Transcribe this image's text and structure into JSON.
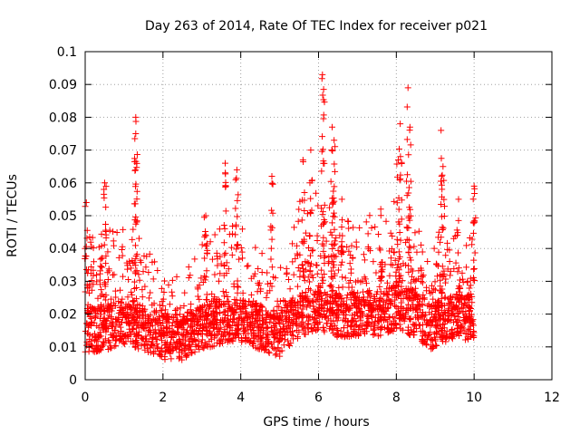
{
  "chart_data": {
    "type": "scatter",
    "title": "Day 263 of 2014, Rate Of TEC Index for receiver p021",
    "xlabel": "GPS time / hours",
    "ylabel": "ROTI / TECUs",
    "xlim": [
      0,
      12
    ],
    "ylim": [
      0,
      0.1
    ],
    "xticks": [
      "0",
      "2",
      "4",
      "6",
      "8",
      "10",
      "12"
    ],
    "yticks": [
      "0",
      "0.01",
      "0.02",
      "0.03",
      "0.04",
      "0.05",
      "0.06",
      "0.07",
      "0.08",
      "0.09",
      "0.1"
    ],
    "grid": true,
    "marker": "+",
    "color": "#ff0000",
    "series": [
      {
        "name": "ROTI p021",
        "x_range_hours": [
          0,
          10
        ],
        "baseline_envelope": [
          [
            0.0,
            0.015,
            0.035
          ],
          [
            0.5,
            0.016,
            0.036
          ],
          [
            1.0,
            0.017,
            0.038
          ],
          [
            1.5,
            0.016,
            0.034
          ],
          [
            2.0,
            0.013,
            0.022
          ],
          [
            2.5,
            0.013,
            0.022
          ],
          [
            3.0,
            0.016,
            0.032
          ],
          [
            3.5,
            0.018,
            0.04
          ],
          [
            4.0,
            0.018,
            0.04
          ],
          [
            4.5,
            0.016,
            0.03
          ],
          [
            5.0,
            0.014,
            0.024
          ],
          [
            5.5,
            0.02,
            0.045
          ],
          [
            6.0,
            0.022,
            0.05
          ],
          [
            6.5,
            0.02,
            0.045
          ],
          [
            7.0,
            0.02,
            0.042
          ],
          [
            7.5,
            0.02,
            0.04
          ],
          [
            8.0,
            0.022,
            0.045
          ],
          [
            8.5,
            0.02,
            0.04
          ],
          [
            8.9,
            0.016,
            0.03
          ],
          [
            9.2,
            0.018,
            0.04
          ],
          [
            9.6,
            0.02,
            0.042
          ],
          [
            10.0,
            0.018,
            0.035
          ]
        ],
        "peaks": [
          [
            0.03,
            0.054
          ],
          [
            0.5,
            0.06
          ],
          [
            1.3,
            0.08
          ],
          [
            1.3,
            0.075
          ],
          [
            3.1,
            0.05
          ],
          [
            3.6,
            0.066
          ],
          [
            3.9,
            0.064
          ],
          [
            4.8,
            0.062
          ],
          [
            5.6,
            0.067
          ],
          [
            5.8,
            0.07
          ],
          [
            6.1,
            0.093
          ],
          [
            6.13,
            0.0885
          ],
          [
            6.35,
            0.077
          ],
          [
            6.4,
            0.073
          ],
          [
            6.6,
            0.055
          ],
          [
            7.6,
            0.052
          ],
          [
            8.05,
            0.067
          ],
          [
            8.1,
            0.078
          ],
          [
            8.3,
            0.089
          ],
          [
            8.35,
            0.077
          ],
          [
            9.15,
            0.076
          ],
          [
            9.2,
            0.065
          ],
          [
            9.6,
            0.055
          ],
          [
            10.0,
            0.059
          ]
        ]
      }
    ]
  }
}
